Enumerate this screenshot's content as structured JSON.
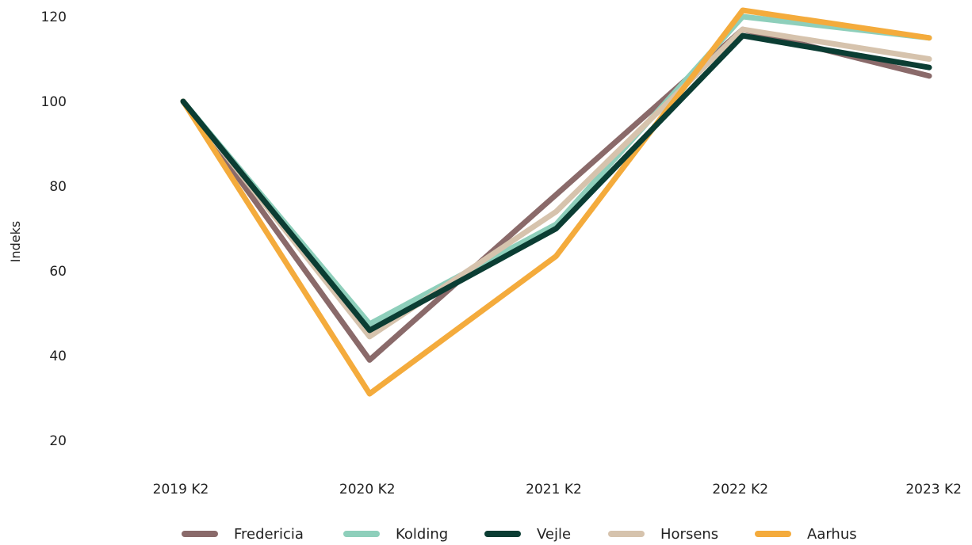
{
  "chart_data": {
    "type": "line",
    "title": "",
    "xlabel": "",
    "ylabel": "Indeks",
    "categories": [
      "2019 K2",
      "2020 K2",
      "2021 K2",
      "2022 K2",
      "2023 K2"
    ],
    "ylim": [
      20,
      120
    ],
    "yticks": [
      20,
      40,
      60,
      80,
      100,
      120
    ],
    "grid": false,
    "legend_position": "bottom",
    "series": [
      {
        "name": "Fredericia",
        "color": "#8a6a6a",
        "values": [
          100,
          39,
          78,
          117,
          106
        ]
      },
      {
        "name": "Kolding",
        "color": "#8ecfbb",
        "values": [
          100,
          47.5,
          71,
          120,
          115
        ]
      },
      {
        "name": "Horsens",
        "color": "#d6c3ad",
        "values": [
          100,
          44.5,
          74,
          117,
          110
        ]
      },
      {
        "name": "Aarhus",
        "color": "#f4ab3c",
        "values": [
          100,
          31,
          63.5,
          121.5,
          115
        ]
      },
      {
        "name": "Vejle",
        "color": "#0b3d33",
        "values": [
          100,
          46,
          70,
          115.5,
          108
        ]
      }
    ],
    "legend_order": [
      "Fredericia",
      "Kolding",
      "Vejle",
      "Horsens",
      "Aarhus"
    ]
  }
}
